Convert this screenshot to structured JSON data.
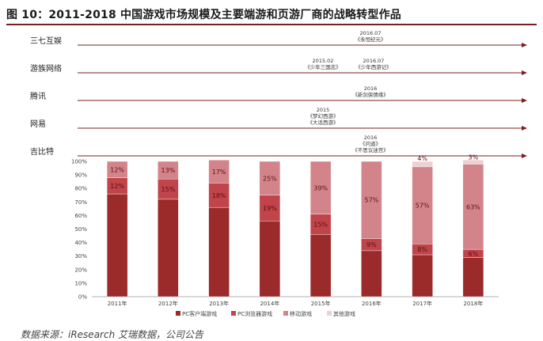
{
  "figure": {
    "title": "图 10：2011-2018 中国游戏市场规模及主要端游和页游厂商的战略转型作品",
    "source": "数据来源：iResearch 艾瑞数据，公司公告"
  },
  "timeline": [
    {
      "company": "三七互娱",
      "annotations": [
        {
          "year": "2016.07",
          "works": [
            "《永恒纪元》"
          ]
        }
      ]
    },
    {
      "company": "游族网络",
      "annotations": [
        {
          "year": "2015.02",
          "works": [
            "《少年三国志》"
          ]
        },
        {
          "year": "2016.07",
          "works": [
            "《少年西游记》"
          ]
        }
      ]
    },
    {
      "company": "腾讯",
      "annotations": [
        {
          "year": "2016",
          "works": [
            "《新剑侠情缘》"
          ]
        }
      ]
    },
    {
      "company": "网易",
      "annotations": [
        {
          "year": "2015",
          "works": [
            "《梦幻西游》",
            "《大话西游》"
          ]
        }
      ]
    },
    {
      "company": "吉比特",
      "annotations": [
        {
          "year": "2016",
          "works": [
            "《问道》",
            "《不思议迷宫》"
          ]
        }
      ]
    }
  ],
  "colors": {
    "pc_client": "#9b2a2a",
    "pc_browser": "#c0444a",
    "mobile": "#d3848a",
    "other": "#edd0d2",
    "title_rule": "#7a1f1f",
    "arrow": "#7a1f1f"
  },
  "chart_data": {
    "type": "bar",
    "stacked": true,
    "categories": [
      "2011年",
      "2012年",
      "2013年",
      "2014年",
      "2015年",
      "2016年",
      "2017年",
      "2018年"
    ],
    "ylim": [
      0,
      100
    ],
    "ytick_labels": [
      "0%",
      "10%",
      "20%",
      "30%",
      "40%",
      "50%",
      "60%",
      "70%",
      "80%",
      "90%",
      "100%"
    ],
    "legend_position": "bottom",
    "series": [
      {
        "name": "PC客户端游戏",
        "values": [
          76,
          72,
          66,
          56,
          46,
          34,
          31,
          29
        ],
        "labels": [
          "",
          "",
          "",
          "",
          "",
          "",
          "",
          ""
        ]
      },
      {
        "name": "PC浏览器游戏",
        "values": [
          12,
          15,
          18,
          19,
          15,
          9,
          8,
          6
        ],
        "labels": [
          "12%",
          "15%",
          "18%",
          "19%",
          "15%",
          "9%",
          "8%",
          "6%"
        ]
      },
      {
        "name": "移动游戏",
        "values": [
          12,
          13,
          17,
          25,
          39,
          57,
          57,
          63
        ],
        "labels": [
          "12%",
          "13%",
          "17%",
          "25%",
          "39%",
          "57%",
          "57%",
          "63%"
        ]
      },
      {
        "name": "其他游戏",
        "values": [
          0,
          0,
          0,
          0,
          0,
          0,
          4,
          3
        ],
        "labels": [
          "",
          "",
          "",
          "",
          "",
          "",
          "4%",
          "3%"
        ]
      }
    ]
  }
}
